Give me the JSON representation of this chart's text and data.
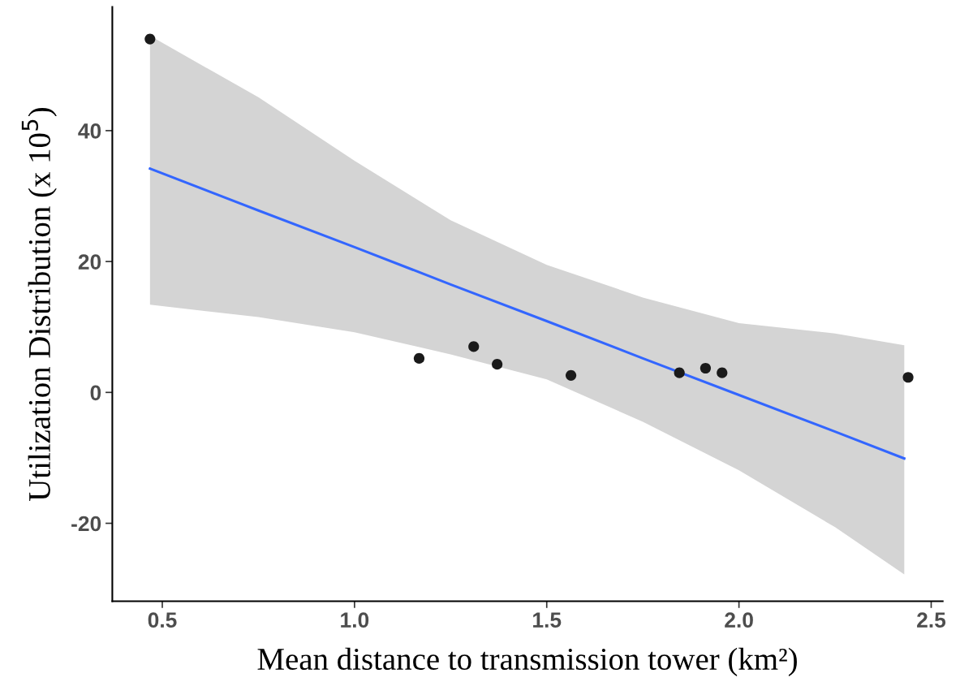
{
  "chart_data": {
    "type": "scatter",
    "xlabel": "Mean distance to transmission tower (km²)",
    "ylabel": "Utilization Distribution (x 10$^{5}$)",
    "xlim": [
      0.37,
      2.53
    ],
    "ylim": [
      -31.9,
      58.9
    ],
    "xticks": [
      {
        "value": 0.5,
        "label": "0.5"
      },
      {
        "value": 1.0,
        "label": "1.0"
      },
      {
        "value": 1.5,
        "label": "1.5"
      },
      {
        "value": 2.0,
        "label": "2.0"
      },
      {
        "value": 2.5,
        "label": "2.5"
      }
    ],
    "yticks": [
      -20,
      0,
      20,
      40
    ],
    "grid": false,
    "series": [
      {
        "type": "line",
        "color": "#3366ff",
        "x": [
          0.468,
          0.75,
          1.0,
          1.25,
          1.5,
          1.75,
          2.0,
          2.25,
          2.43
        ],
        "values": [
          34.2,
          27.8,
          22.2,
          16.5,
          10.9,
          5.2,
          -0.4,
          -6.0,
          -10.1
        ],
        "lower": [
          13.4,
          11.5,
          9.2,
          5.8,
          2.0,
          -4.5,
          -11.9,
          -20.6,
          -27.8
        ],
        "upper": [
          54.5,
          45.1,
          35.4,
          26.3,
          19.5,
          14.5,
          10.6,
          9.0,
          7.2
        ]
      },
      {
        "marker": "circle",
        "color": "#1a1a1a",
        "x": [
          0.468,
          1.168,
          1.31,
          1.371,
          1.563,
          1.845,
          1.913,
          1.956,
          2.44
        ],
        "values": [
          54.0,
          5.2,
          7.0,
          4.3,
          2.6,
          3.0,
          3.7,
          3.0,
          2.3
        ]
      }
    ]
  }
}
